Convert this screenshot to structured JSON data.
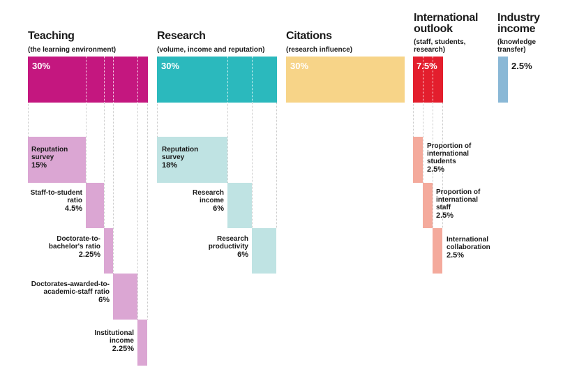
{
  "chart_data": {
    "type": "table",
    "pillars": [
      {
        "title": "Teaching",
        "subtitle": "(the learning environment)",
        "weight": "30%",
        "color": "#c4177f",
        "sub_color": "#dba6d3",
        "metrics": [
          {
            "name": "Reputation survey",
            "weight": "15%"
          },
          {
            "name": "Staff-to-student ratio",
            "weight": "4.5%"
          },
          {
            "name": "Doctorate-to-bachelor's ratio",
            "weight": "2.25%"
          },
          {
            "name": "Doctorates-awarded-to-academic-staff ratio",
            "weight": "6%"
          },
          {
            "name": "Institutional income",
            "weight": "2.25%"
          }
        ]
      },
      {
        "title": "Research",
        "subtitle": "(volume, income and reputation)",
        "weight": "30%",
        "color": "#2bb9bd",
        "sub_color": "#bfe3e3",
        "metrics": [
          {
            "name": "Reputation survey",
            "weight": "18%"
          },
          {
            "name": "Research income",
            "weight": "6%"
          },
          {
            "name": "Research productivity",
            "weight": "6%"
          }
        ]
      },
      {
        "title": "Citations",
        "subtitle": "(research influence)",
        "weight": "30%",
        "color": "#f7d488",
        "metrics": []
      },
      {
        "title": "International outlook",
        "subtitle": "(staff, students, research)",
        "weight": "7.5%",
        "color": "#e31e2d",
        "sub_color": "#f4aa9c",
        "metrics": [
          {
            "name": "Proportion of international students",
            "weight": "2.5%"
          },
          {
            "name": "Proportion of international staff",
            "weight": "2.5%"
          },
          {
            "name": "International collaboration",
            "weight": "2.5%"
          }
        ]
      },
      {
        "title": "Industry income",
        "subtitle": "(knowledge transfer)",
        "weight": "2.5%",
        "color": "#8ab8d6",
        "metrics": []
      }
    ]
  }
}
